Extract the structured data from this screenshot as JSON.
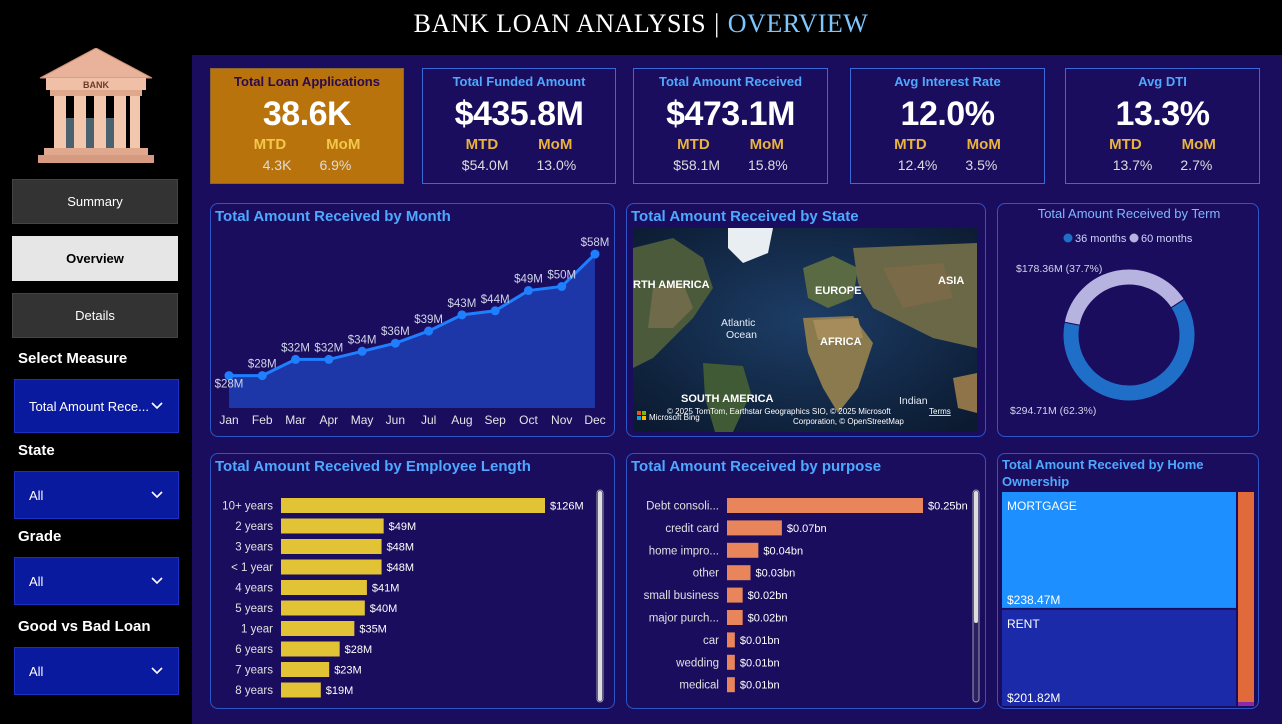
{
  "header": {
    "title_main": "BANK LOAN ANALYSIS",
    "separator": "|",
    "title_sub": "OVERVIEW"
  },
  "sidebar": {
    "logo_text": "BANK",
    "nav": {
      "summary": "Summary",
      "overview": "Overview",
      "details": "Details"
    },
    "filters": [
      {
        "label": "Select Measure",
        "value": "Total Amount Rece..."
      },
      {
        "label": "State",
        "value": "All"
      },
      {
        "label": "Grade",
        "value": "All"
      },
      {
        "label": "Good vs Bad Loan",
        "value": "All"
      }
    ]
  },
  "kpis": [
    {
      "title": "Total Loan Applications",
      "value": "38.6K",
      "mtd_label": "MTD",
      "mom_label": "MoM",
      "mtd": "4.3K",
      "mom": "6.9%"
    },
    {
      "title": "Total Funded Amount",
      "value": "$435.8M",
      "mtd_label": "MTD",
      "mom_label": "MoM",
      "mtd": "$54.0M",
      "mom": "13.0%"
    },
    {
      "title": "Total Amount Received",
      "value": "$473.1M",
      "mtd_label": "MTD",
      "mom_label": "MoM",
      "mtd": "$58.1M",
      "mom": "15.8%"
    },
    {
      "title": "Avg Interest Rate",
      "value": "12.0%",
      "mtd_label": "MTD",
      "mom_label": "MoM",
      "mtd": "12.4%",
      "mom": "3.5%"
    },
    {
      "title": "Avg DTI",
      "value": "13.3%",
      "mtd_label": "MTD",
      "mom_label": "MoM",
      "mtd": "13.7%",
      "mom": "2.7%"
    }
  ],
  "panels": {
    "month": "Total Amount Received by Month",
    "state": "Total Amount Received by State",
    "term": "Total Amount Received by Term",
    "emp": "Total Amount Received by Employee Length",
    "purpose": "Total Amount Received by purpose",
    "home": "Total Amount Received by Home Ownership"
  },
  "map": {
    "labels": [
      "RTH AMERICA",
      "EUROPE",
      "ASIA",
      "Atlantic",
      "Ocean",
      "AFRICA",
      "SOUTH AMERICA",
      "Indian"
    ],
    "attribution": "© 2025 TomTom, Earthstar Geographics SIO, © 2025 Microsoft",
    "terms": "Terms",
    "attribution2": "Corporation, © OpenStreetMap",
    "bing": "Microsoft Bing"
  },
  "colors": {
    "line": "#1e7fff",
    "area": "#1f3fb5",
    "bars_emp": "#e3c336",
    "bars_purpose": "#e8855a",
    "donut_36": "#1f6fc9",
    "donut_60": "#b6b3e0",
    "mortgage": "#1e8fff",
    "rent": "#1b2aa8",
    "other": "#e06a3a"
  },
  "chart_data": [
    {
      "type": "area",
      "categories": [
        "Jan",
        "Feb",
        "Mar",
        "Apr",
        "May",
        "Jun",
        "Jul",
        "Aug",
        "Sep",
        "Oct",
        "Nov",
        "Dec"
      ],
      "values": [
        28,
        28,
        32,
        32,
        34,
        36,
        39,
        43,
        44,
        49,
        50,
        58
      ],
      "labels": [
        "$28M",
        "$28M",
        "$32M",
        "$32M",
        "$34M",
        "$36M",
        "$39M",
        "$43M",
        "$44M",
        "$49M",
        "$50M",
        "$58M"
      ],
      "ylim": [
        20,
        60
      ]
    },
    {
      "type": "pie",
      "legend": [
        "36 months",
        "60 months"
      ],
      "values": [
        294.71,
        178.36
      ],
      "labels": [
        "$294.71M (62.3%)",
        "$178.36M (37.7%)"
      ]
    },
    {
      "type": "bar",
      "categories": [
        "10+ years",
        "2 years",
        "3 years",
        "< 1 year",
        "4 years",
        "5 years",
        "1 year",
        "6 years",
        "7 years",
        "8 years"
      ],
      "values": [
        126,
        49,
        48,
        48,
        41,
        40,
        35,
        28,
        23,
        19
      ],
      "labels": [
        "$126M",
        "$49M",
        "$48M",
        "$48M",
        "$41M",
        "$40M",
        "$35M",
        "$28M",
        "$23M",
        "$19M"
      ]
    },
    {
      "type": "bar",
      "categories": [
        "Debt consoli...",
        "credit card",
        "home impro...",
        "other",
        "small business",
        "major purch...",
        "car",
        "wedding",
        "medical"
      ],
      "values": [
        0.25,
        0.07,
        0.04,
        0.03,
        0.02,
        0.02,
        0.01,
        0.01,
        0.01
      ],
      "labels": [
        "$0.25bn",
        "$0.07bn",
        "$0.04bn",
        "$0.03bn",
        "$0.02bn",
        "$0.02bn",
        "$0.01bn",
        "$0.01bn",
        "$0.01bn"
      ]
    },
    {
      "type": "heatmap",
      "categories": [
        "MORTGAGE",
        "RENT"
      ],
      "values": [
        238.47,
        201.82
      ],
      "labels": [
        "$238.47M",
        "$201.82M"
      ]
    }
  ]
}
